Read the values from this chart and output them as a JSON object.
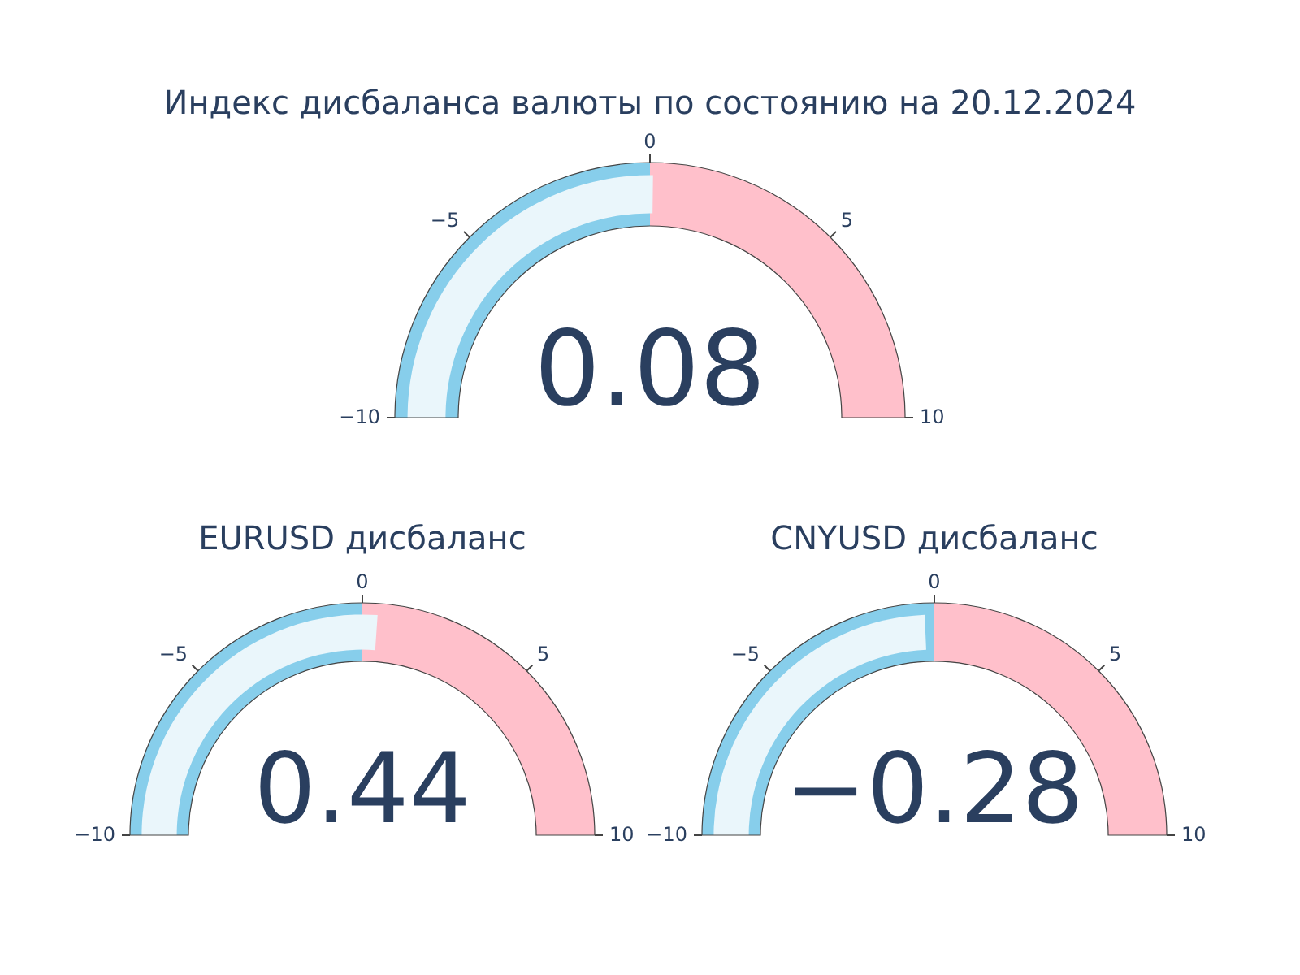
{
  "chart_data": [
    {
      "type": "other",
      "title": "Индекс дисбаланса валюты по состоянию на 20.12.2024",
      "values": [
        0.08
      ],
      "value_labels": [
        "0.08"
      ],
      "color": "#eaf6fb",
      "annotations": [
        "−10",
        "−5",
        "0",
        "5",
        "10"
      ]
    },
    {
      "type": "other",
      "title": "EURUSD дисбаланс",
      "values": [
        0.44
      ],
      "value_labels": [
        "0.44"
      ],
      "color": "#eaf6fb",
      "annotations": [
        "−10",
        "−5",
        "0",
        "5",
        "10"
      ]
    },
    {
      "type": "other",
      "title": "CNYUSD дисбаланс",
      "values": [
        -0.28
      ],
      "value_labels": [
        "−0.28"
      ],
      "color": "#eaf6fb",
      "annotations": [
        "−10",
        "−5",
        "0",
        "5",
        "10"
      ]
    }
  ]
}
